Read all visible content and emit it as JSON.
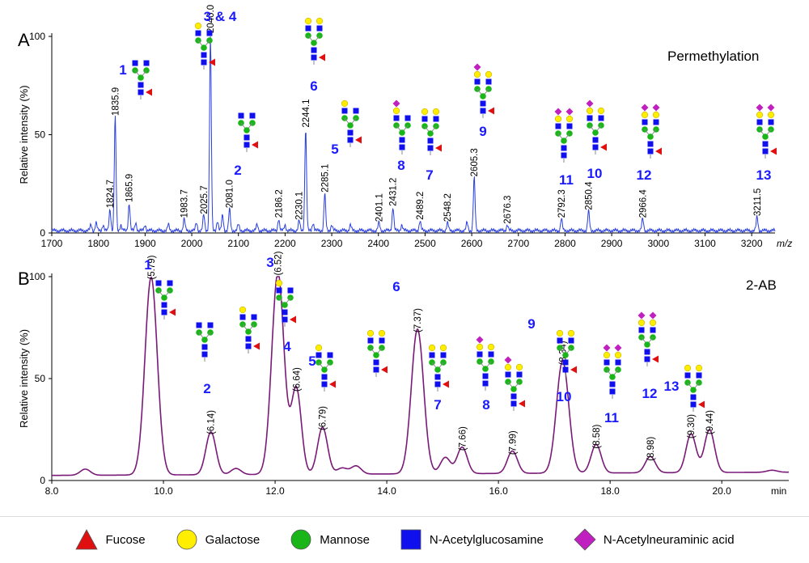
{
  "legend": [
    {
      "shape": "triangle",
      "color": "#e01010",
      "label": "Fucose"
    },
    {
      "shape": "circle",
      "color": "#ffee00",
      "label": "Galactose"
    },
    {
      "shape": "circle",
      "color": "#19b519",
      "label": "Mannose"
    },
    {
      "shape": "square",
      "color": "#1010ee",
      "label": "N-Acetylglucosamine"
    },
    {
      "shape": "diamond",
      "color": "#c020c0",
      "label": "N-Acetylneuraminic acid"
    }
  ],
  "chart_data": [
    {
      "panel": "A",
      "type": "line",
      "method": "Permethylation",
      "xlabel": "m/z",
      "ylabel": "Relative intensity (%)",
      "xlim": [
        1700,
        3250
      ],
      "ylim": [
        0,
        100
      ],
      "x_ticks": [
        "1700",
        "1800",
        "1900",
        "2000",
        "2100",
        "2200",
        "2300",
        "2400",
        "2500",
        "2600",
        "2700",
        "2800",
        "2900",
        "3000",
        "3100",
        "3200"
      ],
      "y_ticks": [
        "0",
        "50",
        "100"
      ],
      "line_color": "#2a3fe0",
      "peaks": [
        {
          "x": 1784,
          "y": 3
        },
        {
          "x": 1795,
          "y": 4
        },
        {
          "x": 1810,
          "y": 3
        },
        {
          "x": 1824.7,
          "y": 11,
          "label": "1824.7"
        },
        {
          "x": 1835.9,
          "y": 58,
          "label": "1835.9"
        },
        {
          "x": 1848,
          "y": 3
        },
        {
          "x": 1865.9,
          "y": 14,
          "label": "1865.9"
        },
        {
          "x": 1880,
          "y": 4
        },
        {
          "x": 1900,
          "y": 3
        },
        {
          "x": 1950,
          "y": 3
        },
        {
          "x": 1983.7,
          "y": 6,
          "label": "1983.7"
        },
        {
          "x": 2010,
          "y": 4
        },
        {
          "x": 2025.7,
          "y": 8,
          "label": "2025.7"
        },
        {
          "x": 2040.0,
          "y": 100,
          "label": "2040.0"
        },
        {
          "x": 2055,
          "y": 5
        },
        {
          "x": 2066,
          "y": 8
        },
        {
          "x": 2081.0,
          "y": 11,
          "label": "2081.0"
        },
        {
          "x": 2100,
          "y": 3
        },
        {
          "x": 2140,
          "y": 3
        },
        {
          "x": 2186.2,
          "y": 6,
          "label": "2186.2"
        },
        {
          "x": 2200,
          "y": 3
        },
        {
          "x": 2230.1,
          "y": 5,
          "label": "2230.1"
        },
        {
          "x": 2244.1,
          "y": 52,
          "label": "2244.1"
        },
        {
          "x": 2260,
          "y": 4
        },
        {
          "x": 2285.1,
          "y": 19,
          "label": "2285.1"
        },
        {
          "x": 2300,
          "y": 3
        },
        {
          "x": 2340,
          "y": 3
        },
        {
          "x": 2401.1,
          "y": 4,
          "label": "2401.1"
        },
        {
          "x": 2431.2,
          "y": 12,
          "label": "2431.2"
        },
        {
          "x": 2450,
          "y": 3
        },
        {
          "x": 2489.2,
          "y": 5,
          "label": "2489.2"
        },
        {
          "x": 2548.2,
          "y": 4,
          "label": "2548.2"
        },
        {
          "x": 2590,
          "y": 4
        },
        {
          "x": 2605.3,
          "y": 27,
          "label": "2605.3"
        },
        {
          "x": 2676.3,
          "y": 3,
          "label": "2676.3"
        },
        {
          "x": 2792.3,
          "y": 6,
          "label": "2792.3"
        },
        {
          "x": 2850.4,
          "y": 10,
          "label": "2850.4"
        },
        {
          "x": 2966.4,
          "y": 6,
          "label": "2966.4"
        },
        {
          "x": 3211.5,
          "y": 7,
          "label": "3211.5"
        }
      ],
      "glycan_labels": [
        "1",
        "3 & 4",
        "2",
        "6",
        "5",
        "8",
        "7",
        "9",
        "11",
        "10",
        "12",
        "13"
      ]
    },
    {
      "panel": "B",
      "type": "line",
      "method": "2-AB",
      "xlabel": "min",
      "ylabel": "Relative intensity (%)",
      "xlim": [
        8.0,
        21.2
      ],
      "ylim": [
        0,
        100
      ],
      "x_ticks": [
        "8.0",
        "10.0",
        "12.0",
        "14.0",
        "16.0",
        "18.0",
        "20.0"
      ],
      "y_ticks": [
        "0",
        "50",
        "100"
      ],
      "line_color": "#7a1a78",
      "peaks": [
        {
          "x": 8.6,
          "y": 3
        },
        {
          "x": 9.78,
          "y": 97,
          "label": "(5.79)",
          "glycan": "1"
        },
        {
          "x": 10.85,
          "y": 21,
          "label": "(6.14)",
          "glycan": "2"
        },
        {
          "x": 11.3,
          "y": 3
        },
        {
          "x": 12.05,
          "y": 99,
          "label": "(6.52)",
          "glycan": "3"
        },
        {
          "x": 12.38,
          "y": 42,
          "label": "(6.64)",
          "glycan": "4"
        },
        {
          "x": 12.85,
          "y": 23,
          "label": "(6.79)",
          "glycan": "5"
        },
        {
          "x": 13.2,
          "y": 3
        },
        {
          "x": 13.45,
          "y": 4
        },
        {
          "x": 14.55,
          "y": 71,
          "label": "(7.37)",
          "glycan": "6"
        },
        {
          "x": 15.05,
          "y": 8
        },
        {
          "x": 15.35,
          "y": 13,
          "label": "(7.66)",
          "glycan": "7"
        },
        {
          "x": 16.25,
          "y": 11,
          "label": "(7.99)",
          "glycan": "8"
        },
        {
          "x": 17.15,
          "y": 55,
          "label": "(8.34)",
          "glycan": "9"
        },
        {
          "x": 17.75,
          "y": 14,
          "label": "(8.58)",
          "glycan": "10"
        },
        {
          "x": 18.72,
          "y": 8,
          "label": "(8.98)",
          "glycan": "11"
        },
        {
          "x": 19.45,
          "y": 19,
          "label": "(9.30)",
          "glycan": "12"
        },
        {
          "x": 19.78,
          "y": 21,
          "label": "(9.44)",
          "glycan": "13"
        },
        {
          "x": 20.9,
          "y": 1
        }
      ]
    }
  ]
}
